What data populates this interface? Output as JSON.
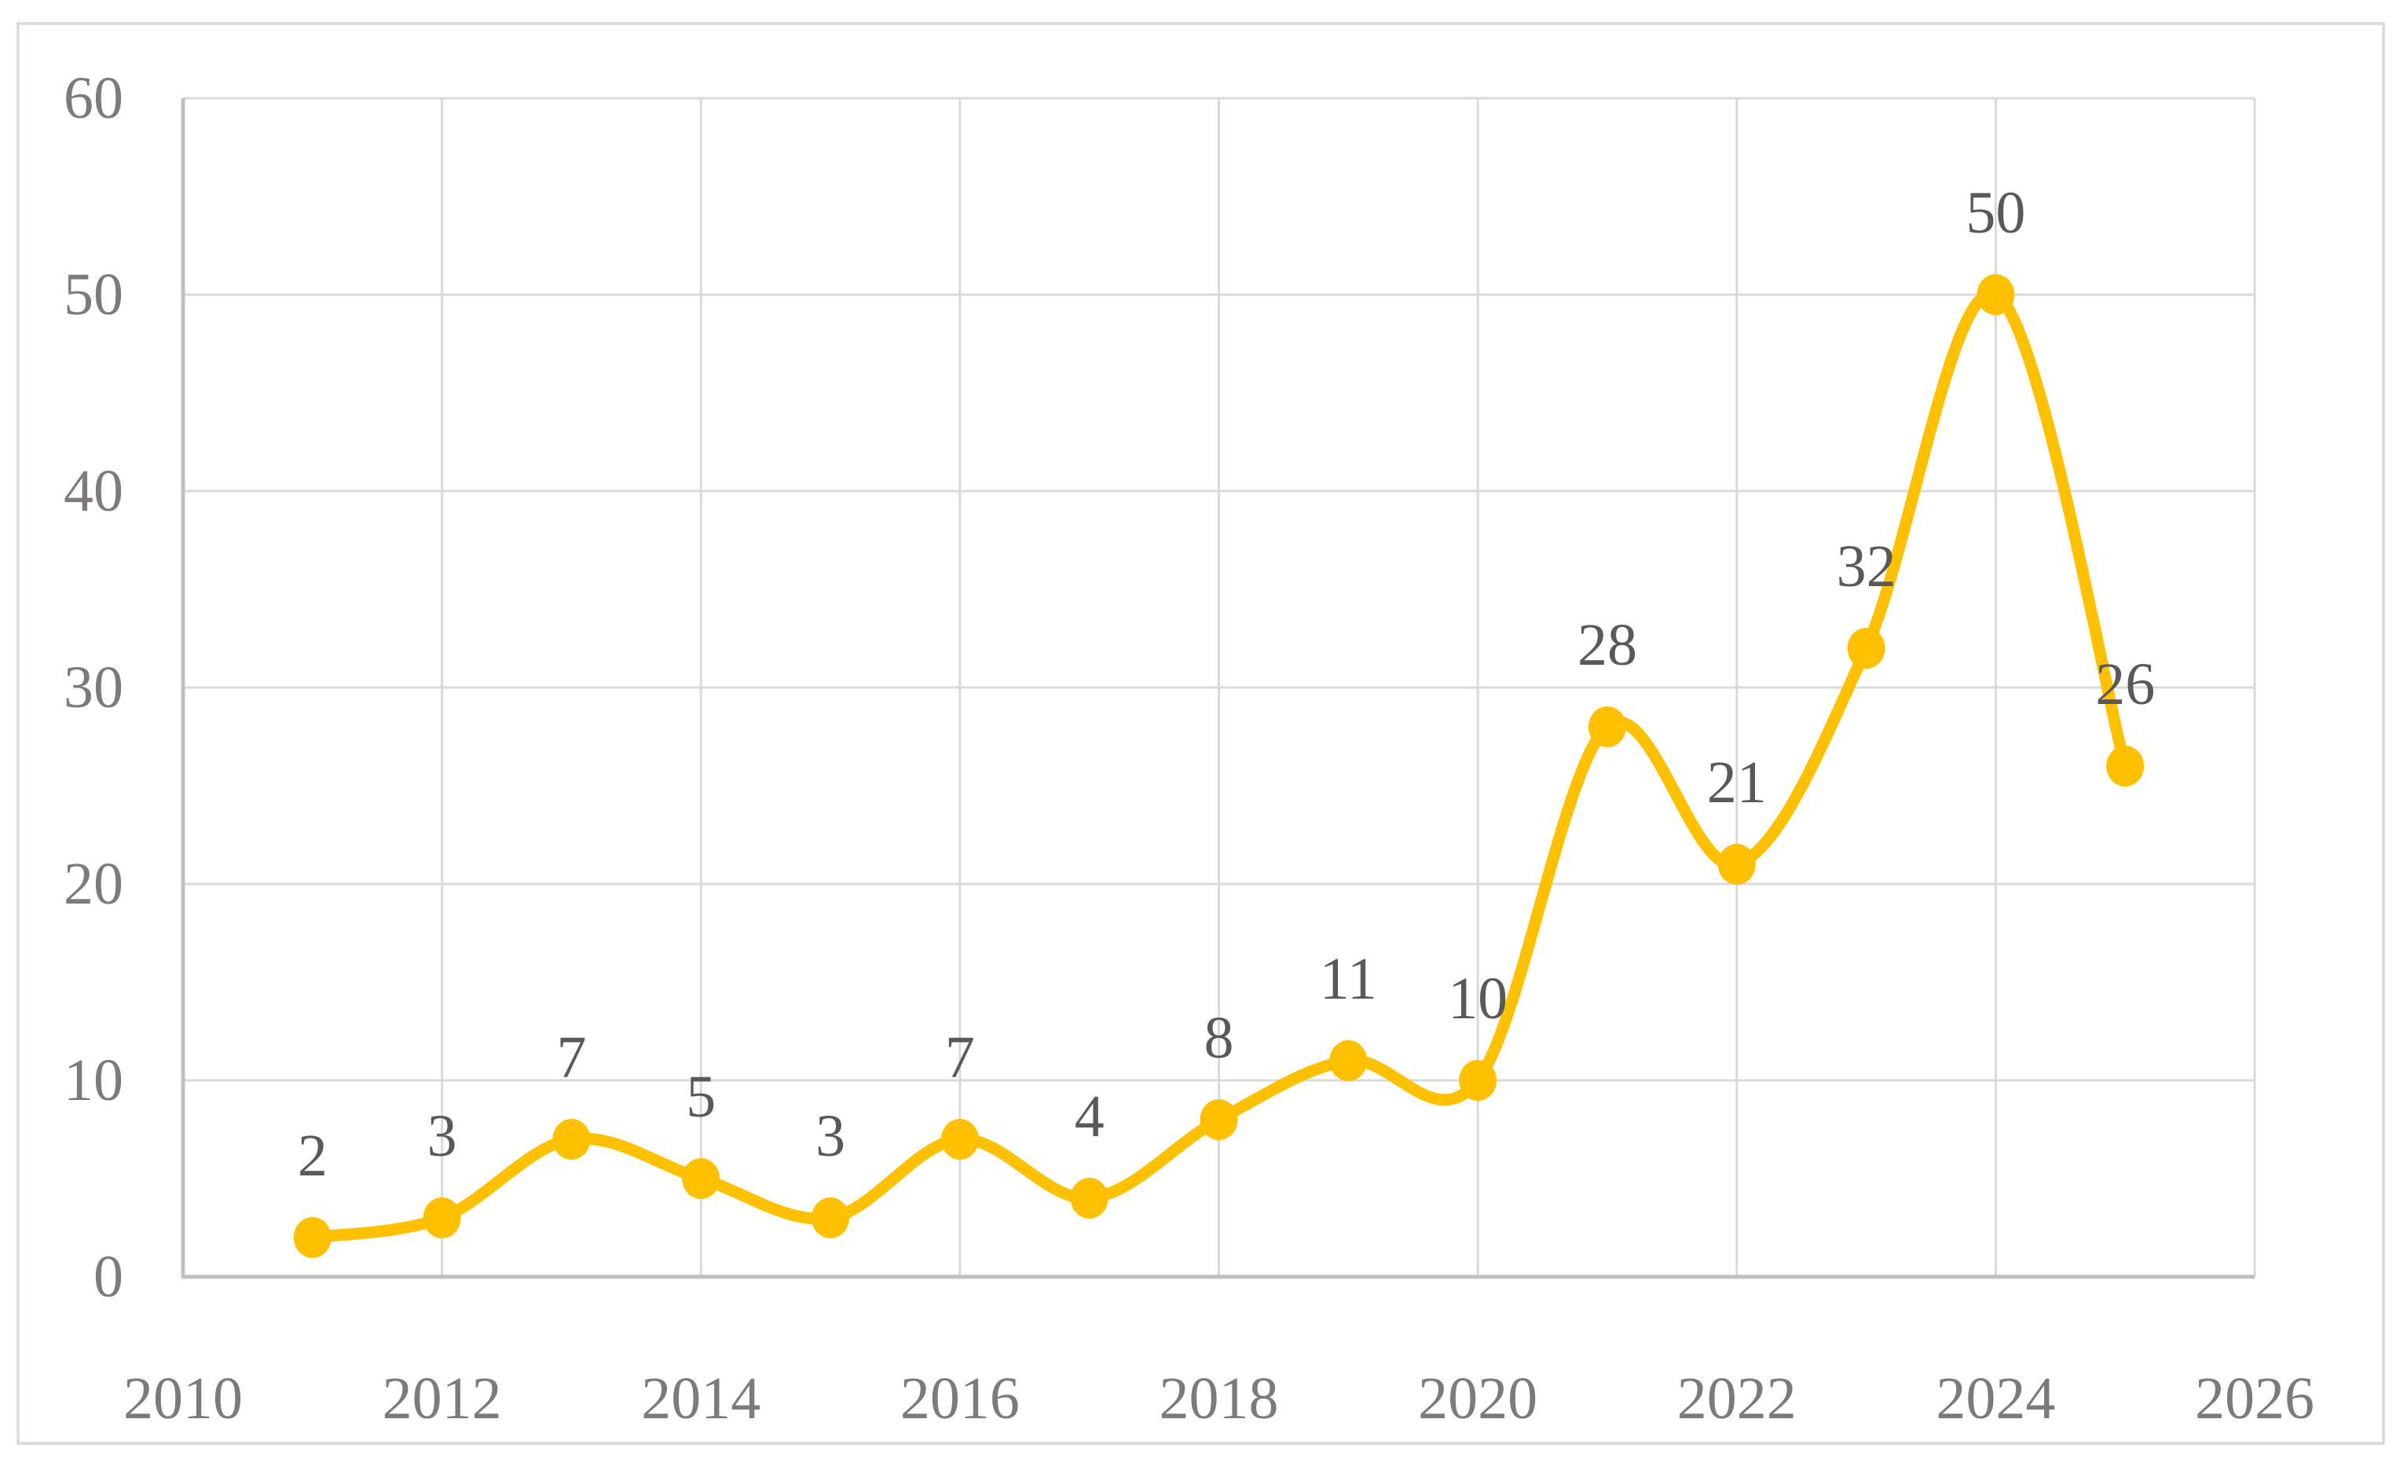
{
  "figure": {
    "background_color": "#ffffff",
    "border_color": "#d9d9d9"
  },
  "chart_data": {
    "type": "line",
    "title": "",
    "xlabel": "",
    "ylabel": "",
    "x": [
      2011,
      2012,
      2013,
      2014,
      2015,
      2016,
      2017,
      2018,
      2019,
      2020,
      2021,
      2022,
      2023,
      2024,
      2025
    ],
    "values": [
      2,
      3,
      7,
      5,
      3,
      7,
      4,
      8,
      11,
      10,
      28,
      21,
      32,
      50,
      26
    ],
    "data_labels_shown": true,
    "smooth_line": true,
    "marker": "circle",
    "xlim": [
      2010,
      2026
    ],
    "ylim": [
      0,
      60
    ],
    "x_ticks": [
      2010,
      2012,
      2014,
      2016,
      2018,
      2020,
      2022,
      2024,
      2026
    ],
    "y_ticks": [
      0,
      10,
      20,
      30,
      40,
      50,
      60
    ],
    "grid": true,
    "legend": "none",
    "line_color": "#FFC000",
    "marker_color": "#FFC000",
    "gridline_color": "#D9D9D9",
    "axis_line_color": "#BFBFBF",
    "tick_label_color": "#7F7A7A",
    "data_label_color": "#595959"
  }
}
